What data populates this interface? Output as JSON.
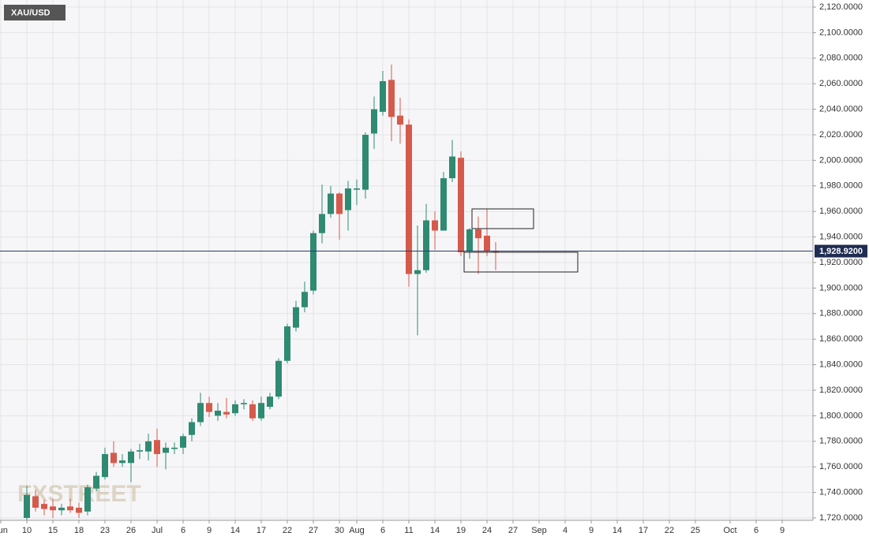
{
  "chart_data": {
    "type": "candlestick",
    "symbol": "XAU/USD",
    "watermark": "FXSTREET",
    "up_color": "#2f8a72",
    "down_color": "#d65a4b",
    "grid": true,
    "categories": [
      "Jun",
      null,
      null,
      "10",
      null,
      null,
      "15",
      null,
      null,
      "18",
      null,
      null,
      "23",
      null,
      null,
      "26",
      null,
      null,
      "Jul",
      null,
      null,
      "6",
      null,
      null,
      "9",
      null,
      null,
      "14",
      null,
      null,
      "17",
      null,
      null,
      "22",
      null,
      null,
      "27",
      null,
      null,
      "30",
      null,
      "Aug",
      null,
      null,
      "6",
      null,
      null,
      "11",
      null,
      null,
      "14",
      null,
      null,
      "19",
      null,
      null,
      "24",
      null,
      null,
      "27",
      null,
      null,
      "Sep",
      null,
      null,
      "4",
      null,
      null,
      "9",
      null,
      null,
      "14",
      null,
      null,
      "17",
      null,
      null,
      "22",
      null,
      null,
      "25",
      null,
      null,
      null,
      "Oct",
      null,
      null,
      "6",
      null,
      null,
      "9",
      null,
      null,
      null
    ],
    "open": [
      null,
      null,
      null,
      1720,
      1737,
      1731,
      1729,
      1726,
      1729,
      1728,
      1725,
      1743,
      1752,
      1771,
      1763,
      1763,
      1772,
      1772,
      1781,
      1771,
      1774,
      1775,
      1785,
      1795,
      1810,
      1800,
      1803,
      1802,
      1809,
      1809,
      1798,
      1807,
      1815,
      1843,
      1869,
      1885,
      1898,
      1943,
      1958,
      1974,
      1961,
      1977,
      1977,
      2021,
      2038,
      2063,
      2035,
      2028,
      1911,
      1914,
      1953,
      1945,
      1986,
      2002,
      1929,
      1946,
      1941,
      1929,
      null,
      null,
      null,
      null,
      null,
      null,
      null,
      null,
      null,
      null,
      null,
      null,
      null,
      null,
      null,
      null,
      null,
      null,
      null,
      null,
      null,
      null,
      null,
      null,
      null,
      null,
      null,
      null,
      null,
      null,
      null,
      null,
      null,
      null,
      null,
      null
    ],
    "high": [
      null,
      null,
      null,
      1745,
      1742,
      1734,
      1735,
      1731,
      1735,
      1732,
      1746,
      1756,
      1775,
      1780,
      1770,
      1774,
      1778,
      1786,
      1790,
      1779,
      1779,
      1786,
      1798,
      1818,
      1815,
      1810,
      1814,
      1812,
      1813,
      1812,
      1815,
      1818,
      1845,
      1872,
      1890,
      1905,
      1945,
      1981,
      1980,
      1975,
      1984,
      1985,
      2022,
      2050,
      2070,
      2075,
      2049,
      2032,
      1949,
      1966,
      1960,
      1991,
      2016,
      2007,
      1947,
      1956,
      1962,
      1936,
      null,
      null,
      null,
      null,
      null,
      null,
      null,
      null,
      null,
      null,
      null,
      null,
      null,
      null,
      null,
      null,
      null,
      null,
      null,
      null,
      null,
      null,
      null,
      null,
      null,
      null,
      null,
      null,
      null,
      null,
      null,
      null,
      null,
      null,
      null,
      null
    ],
    "low": [
      null,
      null,
      null,
      1718,
      1725,
      1722,
      1720,
      1722,
      1724,
      1720,
      1722,
      1741,
      1750,
      1760,
      1760,
      1748,
      1766,
      1765,
      1760,
      1758,
      1770,
      1770,
      1780,
      1792,
      1799,
      1796,
      1798,
      1800,
      1805,
      1796,
      1796,
      1805,
      1813,
      1841,
      1866,
      1881,
      1895,
      1935,
      1955,
      1938,
      1945,
      1965,
      1970,
      2009,
      2035,
      2015,
      2013,
      1901,
      1863,
      1912,
      1930,
      1945,
      1983,
      1925,
      1923,
      1911,
      1925,
      1914,
      null,
      null,
      null,
      null,
      null,
      null,
      null,
      null,
      null,
      null,
      null,
      null,
      null,
      null,
      null,
      null,
      null,
      null,
      null,
      null,
      null,
      null,
      null,
      null,
      null,
      null,
      null,
      null,
      null,
      null,
      null,
      null,
      null,
      null,
      null,
      null
    ],
    "close": [
      null,
      null,
      null,
      1738,
      1728,
      1727,
      1726,
      1728,
      1726,
      1724,
      1744,
      1753,
      1770,
      1763,
      1765,
      1772,
      1773,
      1780,
      1770,
      1775,
      1775,
      1784,
      1795,
      1810,
      1803,
      1804,
      1801,
      1809,
      1810,
      1798,
      1810,
      1815,
      1843,
      1870,
      1885,
      1897,
      1943,
      1958,
      1974,
      1958,
      1978,
      1978,
      2020,
      2040,
      2062,
      2034,
      2028,
      1911,
      1914,
      1953,
      1945,
      1986,
      2003,
      1928,
      1946,
      1939,
      1929,
      1928.92,
      null,
      null,
      null,
      null,
      null,
      null,
      null,
      null,
      null,
      null,
      null,
      null,
      null,
      null,
      null,
      null,
      null,
      null,
      null,
      null,
      null,
      null,
      null,
      null,
      null,
      null,
      null,
      null,
      null,
      null,
      null,
      null,
      null,
      null,
      null,
      null
    ],
    "last_price": {
      "value": 1928.92,
      "label": "1,928.9200"
    },
    "ylim": [
      1720,
      2120
    ],
    "yticks": [
      {
        "value": 1720,
        "label": "1,720.0000"
      },
      {
        "value": 1740,
        "label": "1,740.0000"
      },
      {
        "value": 1760,
        "label": "1,760.0000"
      },
      {
        "value": 1780,
        "label": "1,780.0000"
      },
      {
        "value": 1800,
        "label": "1,800.0000"
      },
      {
        "value": 1820,
        "label": "1,820.0000"
      },
      {
        "value": 1840,
        "label": "1,840.0000"
      },
      {
        "value": 1860,
        "label": "1,860.0000"
      },
      {
        "value": 1880,
        "label": "1,880.0000"
      },
      {
        "value": 1900,
        "label": "1,900.0000"
      },
      {
        "value": 1920,
        "label": "1,920.0000"
      },
      {
        "value": 1940,
        "label": "1,940.0000"
      },
      {
        "value": 1960,
        "label": "1,960.0000"
      },
      {
        "value": 1980,
        "label": "1,980.0000"
      },
      {
        "value": 2000,
        "label": "2,000.0000"
      },
      {
        "value": 2020,
        "label": "2,020.0000"
      },
      {
        "value": 2040,
        "label": "2,040.0000"
      },
      {
        "value": 2060,
        "label": "2,060.0000"
      },
      {
        "value": 2080,
        "label": "2,080.0000"
      },
      {
        "value": 2100,
        "label": "2,100.0000"
      },
      {
        "value": 2120,
        "label": "2,120.0000"
      }
    ]
  }
}
